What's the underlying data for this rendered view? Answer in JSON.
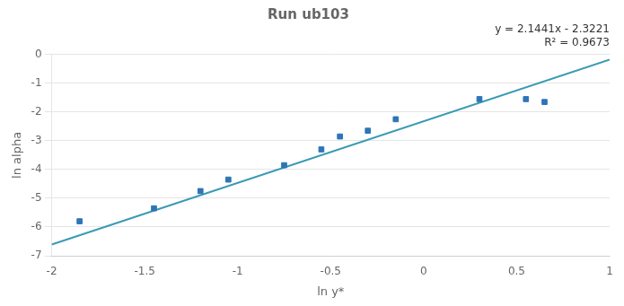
{
  "chart_data": {
    "type": "scatter",
    "title": "Run ub103",
    "annotations": [
      "y = 2.1441x - 2.3221",
      "R² = 0.9673"
    ],
    "x_label": "ln y*",
    "y_label": "ln alpha",
    "series": [
      {
        "type": "scatter",
        "marker": "square",
        "color": "#2E75B6",
        "x": [
          -1.85,
          -1.45,
          -1.2,
          -1.05,
          -0.75,
          -0.55,
          -0.45,
          -0.3,
          -0.15,
          0.3,
          0.55,
          0.65
        ],
        "values": [
          -5.8,
          -5.35,
          -4.75,
          -4.35,
          -3.85,
          -3.3,
          -2.85,
          -2.65,
          -2.25,
          -1.55,
          -1.55,
          -1.65
        ]
      },
      {
        "type": "line",
        "color": "#3A9AB5",
        "line_style": "solid",
        "x": [
          -2.0,
          1.0
        ],
        "values": [
          -6.6103,
          -0.178
        ]
      }
    ],
    "xlim": [
      -2.0,
      1.0
    ],
    "ylim": [
      -7.0,
      0.0
    ],
    "xticks": [
      -2,
      -1.5,
      -1,
      -0.5,
      0,
      0.5,
      1
    ],
    "yticks": [
      0,
      -1,
      -2,
      -3,
      -4,
      -5,
      -6,
      -7
    ],
    "grid": true
  }
}
